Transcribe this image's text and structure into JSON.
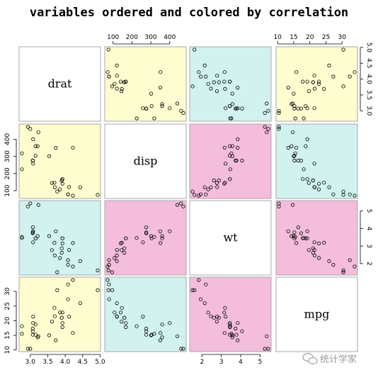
{
  "chart_data": {
    "type": "scatter",
    "subtype": "scatterplot-matrix",
    "title": "variables ordered and colored by correlation",
    "variables": [
      "drat",
      "disp",
      "wt",
      "mpg"
    ],
    "diagonal_labels": [
      "drat",
      "disp",
      "wt",
      "mpg"
    ],
    "axis_ticks": {
      "drat": [
        "3.0",
        "3.5",
        "4.0",
        "4.5",
        "5.0"
      ],
      "disp": [
        "100",
        "200",
        "300",
        "400"
      ],
      "wt": [
        "2",
        "3",
        "4",
        "5"
      ],
      "mpg": [
        "10",
        "15",
        "20",
        "25",
        "30"
      ]
    },
    "ranges": {
      "drat": [
        2.76,
        4.93
      ],
      "disp": [
        71.1,
        472
      ],
      "wt": [
        1.513,
        5.424
      ],
      "mpg": [
        10.4,
        33.9
      ]
    },
    "panel_colors": {
      "strong_positive": "#f4bddc",
      "moderate_negative": "#d1f2ef",
      "weak": "#fdfdd0"
    },
    "cell_colors": [
      [
        null,
        "#fdfdd0",
        "#d1f2ef",
        "#fdfdd0"
      ],
      [
        "#fdfdd0",
        null,
        "#f4bddc",
        "#d1f2ef"
      ],
      [
        "#d1f2ef",
        "#f4bddc",
        null,
        "#f4bddc"
      ],
      [
        "#fdfdd0",
        "#d1f2ef",
        "#f4bddc",
        null
      ]
    ],
    "observations": {
      "mpg": [
        21.0,
        21.0,
        22.8,
        21.4,
        18.7,
        18.1,
        14.3,
        24.4,
        22.8,
        19.2,
        17.8,
        16.4,
        17.3,
        15.2,
        10.4,
        10.4,
        14.7,
        32.4,
        30.4,
        33.9,
        21.5,
        15.5,
        15.2,
        13.3,
        19.2,
        27.3,
        26.0,
        30.4,
        15.8,
        19.7,
        15.0,
        21.4
      ],
      "disp": [
        160,
        160,
        108,
        258,
        360,
        225,
        360,
        146.7,
        140.8,
        167.6,
        167.6,
        275.8,
        275.8,
        275.8,
        472,
        460,
        440,
        78.7,
        75.7,
        71.1,
        120.1,
        318,
        304,
        350,
        400,
        79,
        120.3,
        95.1,
        351,
        145,
        301,
        121
      ],
      "drat": [
        3.9,
        3.9,
        3.85,
        3.08,
        3.15,
        2.76,
        3.21,
        3.69,
        3.92,
        3.92,
        3.92,
        3.07,
        3.07,
        3.07,
        2.93,
        3.0,
        3.23,
        4.08,
        4.93,
        4.22,
        3.7,
        2.76,
        3.15,
        3.73,
        3.08,
        4.08,
        4.43,
        3.77,
        4.22,
        3.62,
        3.54,
        4.11
      ],
      "wt": [
        2.62,
        2.875,
        2.32,
        3.215,
        3.44,
        3.46,
        3.57,
        3.19,
        3.15,
        3.44,
        3.44,
        4.07,
        3.73,
        3.78,
        5.25,
        5.424,
        5.345,
        2.2,
        1.615,
        1.835,
        2.465,
        3.52,
        3.435,
        3.84,
        3.845,
        1.935,
        2.14,
        1.513,
        3.17,
        2.77,
        3.57,
        2.78
      ]
    }
  },
  "watermark": {
    "text": "统计学家",
    "icon": "wechat-icon"
  }
}
